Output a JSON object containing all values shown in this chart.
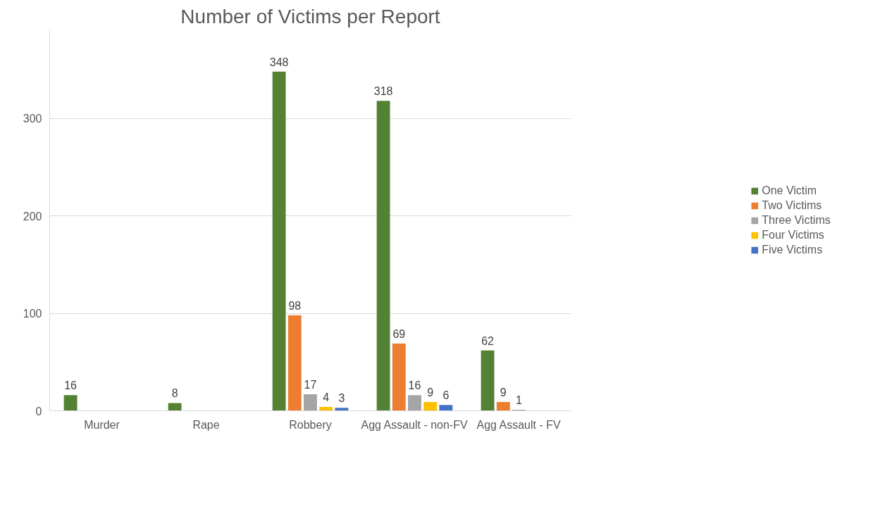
{
  "chart_data": {
    "type": "bar",
    "title": "Number of Victims per Report",
    "categories": [
      "Murder",
      "Rape",
      "Robbery",
      "Agg Assault - non-FV",
      "Agg Assault - FV"
    ],
    "series": [
      {
        "name": "One Victim",
        "color": "#548235",
        "values": [
          16,
          8,
          348,
          318,
          62
        ]
      },
      {
        "name": "Two Victims",
        "color": "#ed7d31",
        "values": [
          null,
          null,
          98,
          69,
          9
        ]
      },
      {
        "name": "Three Victims",
        "color": "#a5a5a5",
        "values": [
          null,
          null,
          17,
          16,
          1
        ]
      },
      {
        "name": "Four Victims",
        "color": "#ffc000",
        "values": [
          null,
          null,
          4,
          9,
          null
        ]
      },
      {
        "name": "Five Victims",
        "color": "#4472c4",
        "values": [
          null,
          null,
          3,
          6,
          null
        ]
      }
    ],
    "ylim": [
      0,
      390
    ],
    "yticks": [
      0,
      100,
      200,
      300
    ],
    "grid": "y",
    "legend": "right",
    "data_labels": true
  }
}
